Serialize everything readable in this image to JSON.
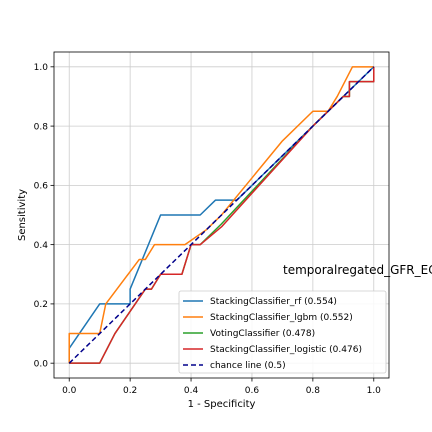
{
  "chart_data": {
    "type": "line",
    "xlabel": "1 - Specificity",
    "ylabel": "Sensitivity",
    "side_title": "temporalregated_GFR_EC",
    "xlim": [
      -0.05,
      1.05
    ],
    "ylim": [
      -0.05,
      1.05
    ],
    "xticks": [
      "0.0",
      "0.2",
      "0.4",
      "0.6",
      "0.8",
      "1.0"
    ],
    "yticks": [
      "0.0",
      "0.2",
      "0.4",
      "0.6",
      "0.8",
      "1.0"
    ],
    "grid": true,
    "legend_position": "lower-right",
    "series": [
      {
        "name": "StackingClassifier_rf (0.554)",
        "color": "#1f77b4",
        "dash": false,
        "x": [
          0,
          0,
          0.1,
          0.2,
          0.2,
          0.28,
          0.3,
          0.43,
          0.48,
          0.55,
          0.75,
          0.8,
          0.9,
          0.95,
          1.0
        ],
        "y": [
          0,
          0.05,
          0.2,
          0.2,
          0.25,
          0.45,
          0.5,
          0.5,
          0.55,
          0.55,
          0.75,
          0.8,
          0.9,
          0.95,
          1.0
        ]
      },
      {
        "name": "StackingClassifier_lgbm (0.552)",
        "color": "#ff7f0e",
        "dash": false,
        "x": [
          0,
          0,
          0.1,
          0.12,
          0.23,
          0.25,
          0.28,
          0.38,
          0.45,
          0.5,
          0.7,
          0.8,
          0.85,
          0.88,
          0.93,
          1.0,
          1.0
        ],
        "y": [
          0,
          0.1,
          0.1,
          0.2,
          0.35,
          0.35,
          0.4,
          0.4,
          0.45,
          0.5,
          0.75,
          0.85,
          0.85,
          0.9,
          1.0,
          1.0,
          1.0
        ]
      },
      {
        "name": "VotingClassifier (0.478)",
        "color": "#2ca02c",
        "dash": false,
        "x": [
          0,
          0.1,
          0.15,
          0.25,
          0.27,
          0.3,
          0.37,
          0.4,
          0.43,
          0.5,
          0.8,
          0.88,
          0.9,
          0.92,
          0.92,
          1.0,
          1.0
        ],
        "y": [
          0,
          0,
          0.1,
          0.25,
          0.25,
          0.3,
          0.3,
          0.4,
          0.4,
          0.47,
          0.8,
          0.88,
          0.9,
          0.9,
          0.95,
          0.95,
          1.0
        ]
      },
      {
        "name": "StackingClassifier_logistic (0.476)",
        "color": "#d62728",
        "dash": false,
        "x": [
          0,
          0.1,
          0.15,
          0.25,
          0.27,
          0.3,
          0.37,
          0.4,
          0.43,
          0.5,
          0.8,
          0.88,
          0.9,
          0.92,
          0.92,
          1.0,
          1.0
        ],
        "y": [
          0,
          0,
          0.1,
          0.25,
          0.25,
          0.3,
          0.3,
          0.4,
          0.4,
          0.46,
          0.8,
          0.88,
          0.9,
          0.9,
          0.95,
          0.95,
          1.0
        ]
      },
      {
        "name": "chance line (0.5)",
        "color": "#00008b",
        "dash": true,
        "x": [
          0,
          1
        ],
        "y": [
          0,
          1
        ]
      }
    ]
  }
}
